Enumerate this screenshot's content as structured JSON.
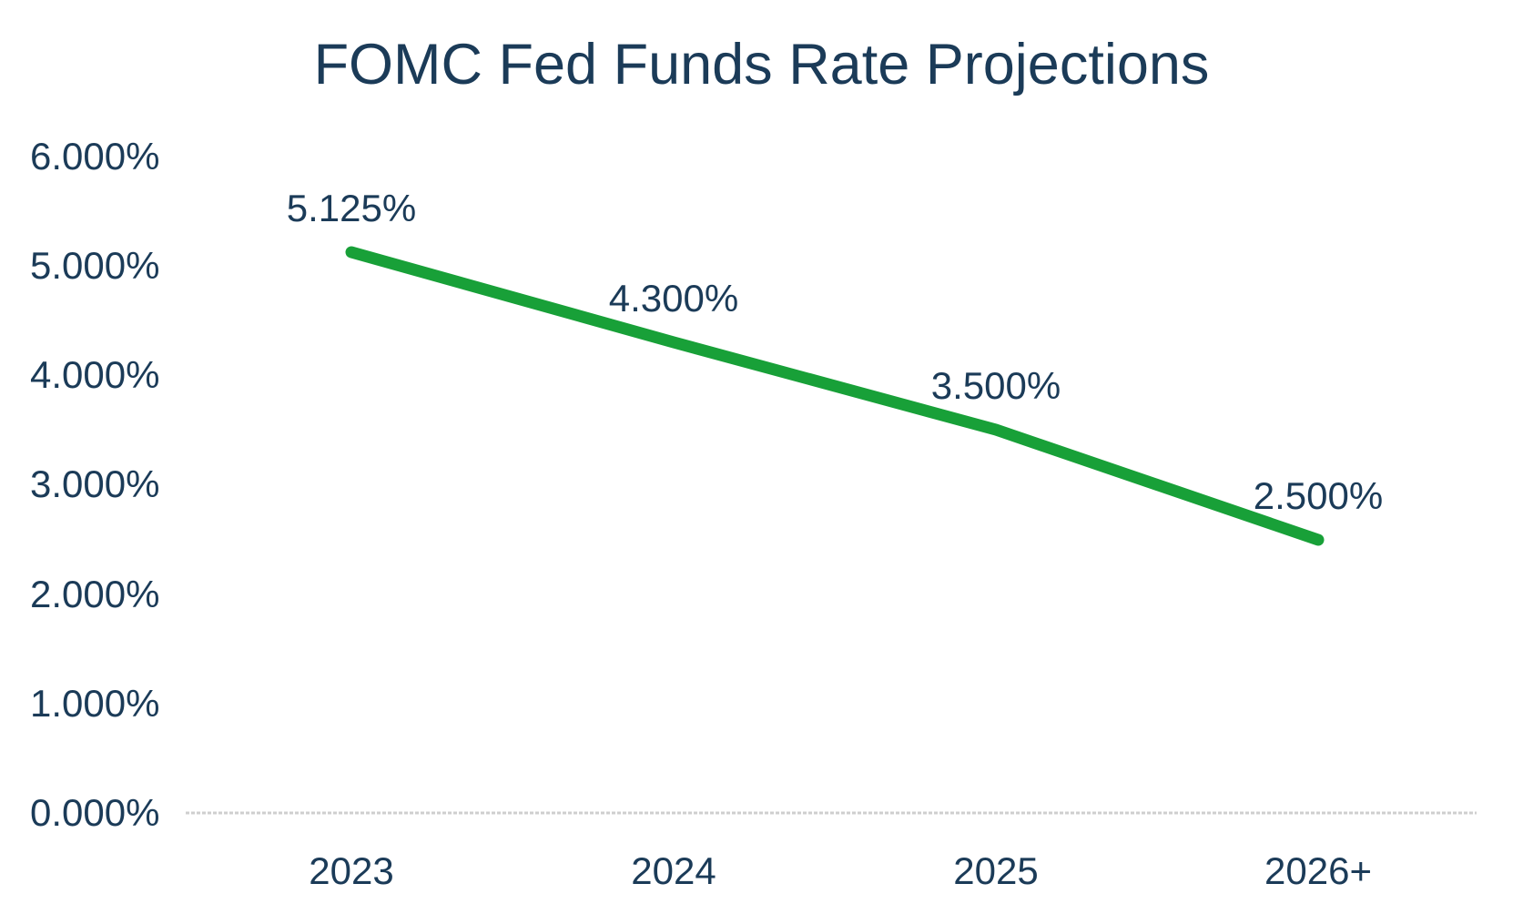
{
  "chart_data": {
    "type": "line",
    "title": "FOMC Fed Funds Rate Projections",
    "categories": [
      "2023",
      "2024",
      "2025",
      "2026+"
    ],
    "values": [
      5.125,
      4.3,
      3.5,
      2.5
    ],
    "data_labels": [
      "5.125%",
      "4.300%",
      "3.500%",
      "2.500%"
    ],
    "y_ticks": [
      {
        "value": 6,
        "label": "6.000%"
      },
      {
        "value": 5,
        "label": "5.000%"
      },
      {
        "value": 4,
        "label": "4.000%"
      },
      {
        "value": 3,
        "label": "3.000%"
      },
      {
        "value": 2,
        "label": "2.000%"
      },
      {
        "value": 1,
        "label": "1.000%"
      },
      {
        "value": 0,
        "label": "0.000%"
      }
    ],
    "ylim": [
      0,
      6
    ],
    "xlabel": "",
    "ylabel": "",
    "legend": "none",
    "grid": false,
    "colors": {
      "line": "#18A038",
      "text": "#1B3B58",
      "axis_line": "#CFCFCF",
      "background": "#FFFFFF"
    }
  }
}
